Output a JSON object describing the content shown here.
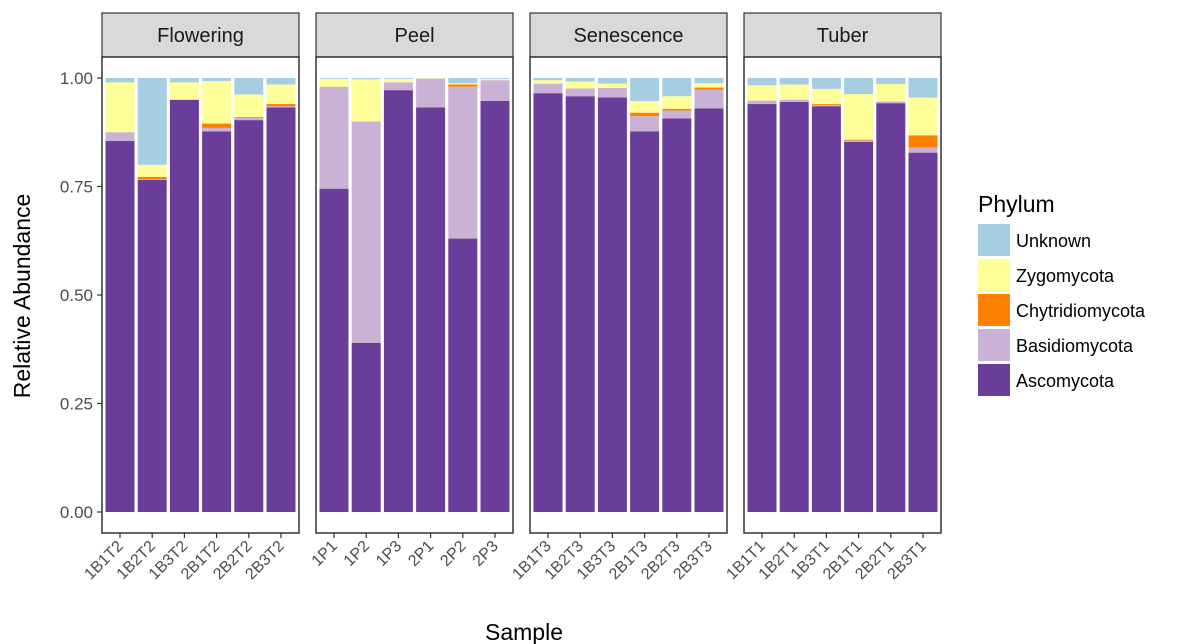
{
  "chart_data": {
    "type": "bar",
    "stacked": true,
    "title": "",
    "xlabel": "Sample",
    "ylabel": "Relative Abundance",
    "ylim": [
      0,
      1
    ],
    "yticks": [
      "0.00",
      "0.25",
      "0.50",
      "0.75",
      "1.00"
    ],
    "legend": {
      "title": "Phylum",
      "position": "right",
      "entries": [
        "Unknown",
        "Zygomycota",
        "Chytridiomycota",
        "Basidiomycota",
        "Ascomycota"
      ]
    },
    "colors": {
      "Ascomycota": "#6a3d9a",
      "Basidiomycota": "#cab2d6",
      "Chytridiomycota": "#ff7f00",
      "Zygomycota": "#ffff99",
      "Unknown": "#a6cee3"
    },
    "stack_order": [
      "Ascomycota",
      "Basidiomycota",
      "Chytridiomycota",
      "Zygomycota",
      "Unknown"
    ],
    "panels": [
      {
        "name": "Flowering",
        "samples": [
          {
            "label": "1B1T2",
            "Ascomycota": 0.855,
            "Basidiomycota": 0.02,
            "Chytridiomycota": 0.0,
            "Zygomycota": 0.115,
            "Unknown": 0.01
          },
          {
            "label": "1B2T2",
            "Ascomycota": 0.765,
            "Basidiomycota": 0.002,
            "Chytridiomycota": 0.005,
            "Zygomycota": 0.028,
            "Unknown": 0.2
          },
          {
            "label": "1B3T2",
            "Ascomycota": 0.95,
            "Basidiomycota": 0.0,
            "Chytridiomycota": 0.0,
            "Zygomycota": 0.04,
            "Unknown": 0.01
          },
          {
            "label": "2B1T2",
            "Ascomycota": 0.877,
            "Basidiomycota": 0.008,
            "Chytridiomycota": 0.01,
            "Zygomycota": 0.098,
            "Unknown": 0.007
          },
          {
            "label": "2B2T2",
            "Ascomycota": 0.903,
            "Basidiomycota": 0.005,
            "Chytridiomycota": 0.002,
            "Zygomycota": 0.052,
            "Unknown": 0.038
          },
          {
            "label": "2B3T2",
            "Ascomycota": 0.932,
            "Basidiomycota": 0.003,
            "Chytridiomycota": 0.005,
            "Zygomycota": 0.045,
            "Unknown": 0.015
          }
        ]
      },
      {
        "name": "Peel",
        "samples": [
          {
            "label": "1P1",
            "Ascomycota": 0.745,
            "Basidiomycota": 0.235,
            "Chytridiomycota": 0.0,
            "Zygomycota": 0.018,
            "Unknown": 0.002
          },
          {
            "label": "1P2",
            "Ascomycota": 0.39,
            "Basidiomycota": 0.51,
            "Chytridiomycota": 0.0,
            "Zygomycota": 0.097,
            "Unknown": 0.003
          },
          {
            "label": "1P3",
            "Ascomycota": 0.972,
            "Basidiomycota": 0.018,
            "Chytridiomycota": 0.0,
            "Zygomycota": 0.008,
            "Unknown": 0.002
          },
          {
            "label": "2P1",
            "Ascomycota": 0.932,
            "Basidiomycota": 0.066,
            "Chytridiomycota": 0.0,
            "Zygomycota": 0.001,
            "Unknown": 0.001
          },
          {
            "label": "2P2",
            "Ascomycota": 0.63,
            "Basidiomycota": 0.35,
            "Chytridiomycota": 0.005,
            "Zygomycota": 0.003,
            "Unknown": 0.012
          },
          {
            "label": "2P3",
            "Ascomycota": 0.947,
            "Basidiomycota": 0.048,
            "Chytridiomycota": 0.0,
            "Zygomycota": 0.003,
            "Unknown": 0.002
          }
        ]
      },
      {
        "name": "Senescence",
        "samples": [
          {
            "label": "1B1T3",
            "Ascomycota": 0.965,
            "Basidiomycota": 0.022,
            "Chytridiomycota": 0.0,
            "Zygomycota": 0.008,
            "Unknown": 0.005
          },
          {
            "label": "1B2T3",
            "Ascomycota": 0.958,
            "Basidiomycota": 0.018,
            "Chytridiomycota": 0.0,
            "Zygomycota": 0.016,
            "Unknown": 0.008
          },
          {
            "label": "1B3T3",
            "Ascomycota": 0.955,
            "Basidiomycota": 0.022,
            "Chytridiomycota": 0.0,
            "Zygomycota": 0.01,
            "Unknown": 0.013
          },
          {
            "label": "2B1T3",
            "Ascomycota": 0.877,
            "Basidiomycota": 0.035,
            "Chytridiomycota": 0.008,
            "Zygomycota": 0.027,
            "Unknown": 0.053
          },
          {
            "label": "2B2T3",
            "Ascomycota": 0.907,
            "Basidiomycota": 0.018,
            "Chytridiomycota": 0.004,
            "Zygomycota": 0.029,
            "Unknown": 0.042
          },
          {
            "label": "2B3T3",
            "Ascomycota": 0.93,
            "Basidiomycota": 0.043,
            "Chytridiomycota": 0.005,
            "Zygomycota": 0.01,
            "Unknown": 0.012
          }
        ]
      },
      {
        "name": "Tuber",
        "samples": [
          {
            "label": "1B1T1",
            "Ascomycota": 0.94,
            "Basidiomycota": 0.008,
            "Chytridiomycota": 0.0,
            "Zygomycota": 0.035,
            "Unknown": 0.017
          },
          {
            "label": "1B2T1",
            "Ascomycota": 0.945,
            "Basidiomycota": 0.005,
            "Chytridiomycota": 0.0,
            "Zygomycota": 0.035,
            "Unknown": 0.015
          },
          {
            "label": "1B3T1",
            "Ascomycota": 0.935,
            "Basidiomycota": 0.003,
            "Chytridiomycota": 0.002,
            "Zygomycota": 0.035,
            "Unknown": 0.025
          },
          {
            "label": "2B1T1",
            "Ascomycota": 0.853,
            "Basidiomycota": 0.003,
            "Chytridiomycota": 0.002,
            "Zygomycota": 0.105,
            "Unknown": 0.037
          },
          {
            "label": "2B2T1",
            "Ascomycota": 0.942,
            "Basidiomycota": 0.004,
            "Chytridiomycota": 0.0,
            "Zygomycota": 0.04,
            "Unknown": 0.014
          },
          {
            "label": "2B3T1",
            "Ascomycota": 0.828,
            "Basidiomycota": 0.012,
            "Chytridiomycota": 0.028,
            "Zygomycota": 0.087,
            "Unknown": 0.045
          }
        ]
      }
    ]
  }
}
